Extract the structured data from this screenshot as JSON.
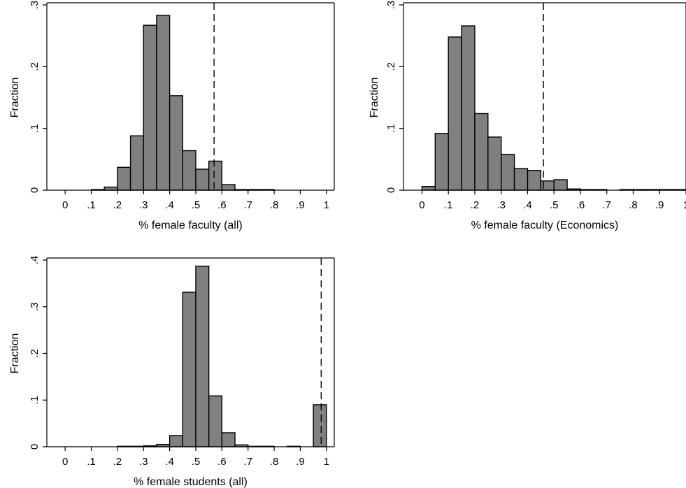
{
  "chart_data": [
    {
      "type": "bar",
      "xlabel": "% female faculty (all)",
      "ylabel": "Fraction",
      "xlim": [
        -0.07,
        1.03
      ],
      "ylim": [
        0,
        0.3
      ],
      "x_ticks": [
        {
          "v": 0,
          "label": "0"
        },
        {
          "v": 0.1,
          "label": ".1"
        },
        {
          "v": 0.2,
          "label": ".2"
        },
        {
          "v": 0.3,
          "label": ".3"
        },
        {
          "v": 0.4,
          "label": ".4"
        },
        {
          "v": 0.5,
          "label": ".5"
        },
        {
          "v": 0.6,
          "label": ".6"
        },
        {
          "v": 0.7,
          "label": ".7"
        },
        {
          "v": 0.8,
          "label": ".8"
        },
        {
          "v": 0.9,
          "label": ".9"
        },
        {
          "v": 1,
          "label": "1"
        }
      ],
      "y_ticks": [
        {
          "v": 0,
          "label": "0"
        },
        {
          "v": 0.1,
          "label": ".1"
        },
        {
          "v": 0.2,
          "label": ".2"
        },
        {
          "v": 0.3,
          "label": ".3"
        }
      ],
      "bar_width": 0.05,
      "bars": [
        {
          "x": 0.1,
          "y": 0.001
        },
        {
          "x": 0.15,
          "y": 0.005
        },
        {
          "x": 0.2,
          "y": 0.037
        },
        {
          "x": 0.25,
          "y": 0.088
        },
        {
          "x": 0.3,
          "y": 0.267
        },
        {
          "x": 0.35,
          "y": 0.283
        },
        {
          "x": 0.4,
          "y": 0.153
        },
        {
          "x": 0.45,
          "y": 0.064
        },
        {
          "x": 0.5,
          "y": 0.034
        },
        {
          "x": 0.55,
          "y": 0.047
        },
        {
          "x": 0.6,
          "y": 0.009
        },
        {
          "x": 0.65,
          "y": 0.001
        },
        {
          "x": 0.7,
          "y": 0.001
        },
        {
          "x": 0.75,
          "y": 0.001
        }
      ],
      "reference_line_x": 0.57,
      "color": "#808080"
    },
    {
      "type": "bar",
      "xlabel": "% female faculty (Economics)",
      "ylabel": "Fraction",
      "xlim": [
        -0.07,
        1.0
      ],
      "ylim": [
        0,
        0.3
      ],
      "x_ticks": [
        {
          "v": 0,
          "label": "0"
        },
        {
          "v": 0.1,
          "label": ".1"
        },
        {
          "v": 0.2,
          "label": ".2"
        },
        {
          "v": 0.3,
          "label": ".3"
        },
        {
          "v": 0.4,
          "label": ".4"
        },
        {
          "v": 0.5,
          "label": ".5"
        },
        {
          "v": 0.6,
          "label": ".6"
        },
        {
          "v": 0.7,
          "label": ".7"
        },
        {
          "v": 0.8,
          "label": ".8"
        },
        {
          "v": 0.9,
          "label": ".9"
        },
        {
          "v": 1,
          "label": "1"
        }
      ],
      "y_ticks": [
        {
          "v": 0,
          "label": "0"
        },
        {
          "v": 0.1,
          "label": ".1"
        },
        {
          "v": 0.2,
          "label": ".2"
        },
        {
          "v": 0.3,
          "label": ".3"
        }
      ],
      "bar_width": 0.05,
      "bars": [
        {
          "x": 0.0,
          "y": 0.006
        },
        {
          "x": 0.05,
          "y": 0.092
        },
        {
          "x": 0.1,
          "y": 0.248
        },
        {
          "x": 0.15,
          "y": 0.266
        },
        {
          "x": 0.2,
          "y": 0.124
        },
        {
          "x": 0.25,
          "y": 0.086
        },
        {
          "x": 0.3,
          "y": 0.058
        },
        {
          "x": 0.35,
          "y": 0.035
        },
        {
          "x": 0.4,
          "y": 0.032
        },
        {
          "x": 0.45,
          "y": 0.015
        },
        {
          "x": 0.5,
          "y": 0.017
        },
        {
          "x": 0.55,
          "y": 0.002
        },
        {
          "x": 0.6,
          "y": 0.001
        },
        {
          "x": 0.65,
          "y": 0.001
        },
        {
          "x": 0.75,
          "y": 0.001
        },
        {
          "x": 0.8,
          "y": 0.001
        },
        {
          "x": 0.85,
          "y": 0.001
        },
        {
          "x": 0.9,
          "y": 0.001
        },
        {
          "x": 0.95,
          "y": 0.001
        }
      ],
      "reference_line_x": 0.46,
      "color": "#808080"
    },
    {
      "type": "bar",
      "xlabel": "% female students (all)",
      "ylabel": "Fraction",
      "xlim": [
        -0.07,
        1.03
      ],
      "ylim": [
        0,
        0.4
      ],
      "x_ticks": [
        {
          "v": 0,
          "label": "0"
        },
        {
          "v": 0.1,
          "label": ".1"
        },
        {
          "v": 0.2,
          "label": ".2"
        },
        {
          "v": 0.3,
          "label": ".3"
        },
        {
          "v": 0.4,
          "label": ".4"
        },
        {
          "v": 0.5,
          "label": ".5"
        },
        {
          "v": 0.6,
          "label": ".6"
        },
        {
          "v": 0.7,
          "label": ".7"
        },
        {
          "v": 0.8,
          "label": ".8"
        },
        {
          "v": 0.9,
          "label": ".9"
        },
        {
          "v": 1,
          "label": "1"
        }
      ],
      "y_ticks": [
        {
          "v": 0,
          "label": "0"
        },
        {
          "v": 0.1,
          "label": ".1"
        },
        {
          "v": 0.2,
          "label": ".2"
        },
        {
          "v": 0.3,
          "label": ".3"
        },
        {
          "v": 0.4,
          "label": ".4"
        }
      ],
      "bar_width": 0.05,
      "bars": [
        {
          "x": 0.2,
          "y": 0.001
        },
        {
          "x": 0.25,
          "y": 0.001
        },
        {
          "x": 0.3,
          "y": 0.002
        },
        {
          "x": 0.35,
          "y": 0.005
        },
        {
          "x": 0.4,
          "y": 0.024
        },
        {
          "x": 0.45,
          "y": 0.331
        },
        {
          "x": 0.5,
          "y": 0.387
        },
        {
          "x": 0.55,
          "y": 0.109
        },
        {
          "x": 0.6,
          "y": 0.03
        },
        {
          "x": 0.65,
          "y": 0.004
        },
        {
          "x": 0.7,
          "y": 0.001
        },
        {
          "x": 0.75,
          "y": 0.001
        },
        {
          "x": 0.85,
          "y": 0.001
        },
        {
          "x": 0.95,
          "y": 0.09
        }
      ],
      "reference_line_x": 0.98,
      "color": "#808080"
    }
  ]
}
